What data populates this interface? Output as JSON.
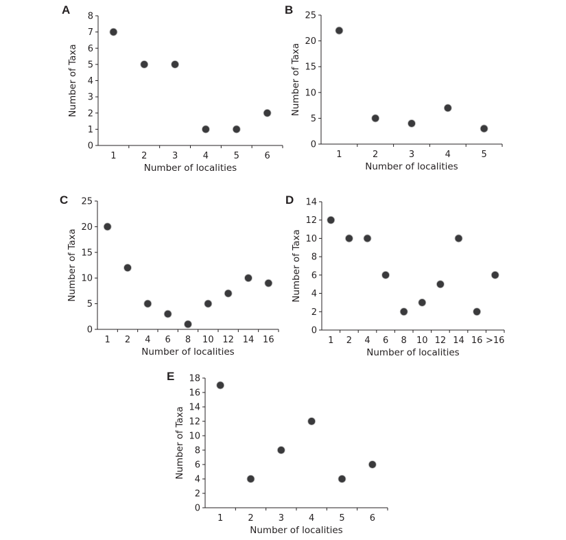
{
  "figure": {
    "marker_color": "#3a3a3c",
    "axis_color": "#231f20"
  },
  "chart_data": [
    {
      "panel": "A",
      "type": "scatter",
      "title": "",
      "xlabel": "Number of localities",
      "ylabel": "Number of Taxa",
      "categories": [
        "1",
        "2",
        "3",
        "4",
        "5",
        "6"
      ],
      "values": [
        7,
        5,
        5,
        1,
        1,
        2
      ],
      "ylim": [
        0,
        8
      ],
      "yticks": [
        "0",
        "1",
        "2",
        "3",
        "4",
        "5",
        "6",
        "7",
        "8"
      ],
      "grid": false
    },
    {
      "panel": "B",
      "type": "scatter",
      "title": "",
      "xlabel": "Number of localities",
      "ylabel": "Number of Taxa",
      "categories": [
        "1",
        "2",
        "3",
        "4",
        "5"
      ],
      "values": [
        22,
        5,
        4,
        7,
        3
      ],
      "ylim": [
        0,
        25
      ],
      "yticks": [
        "0",
        "5",
        "10",
        "15",
        "20",
        "25"
      ],
      "grid": false
    },
    {
      "panel": "C",
      "type": "scatter",
      "title": "",
      "xlabel": "Number of localities",
      "ylabel": "Number of Taxa",
      "categories": [
        "1",
        "2",
        "4",
        "6",
        "8",
        "10",
        "12",
        "14",
        "16"
      ],
      "values": [
        20,
        12,
        5,
        3,
        1,
        5,
        7,
        10,
        9
      ],
      "ylim": [
        0,
        25
      ],
      "yticks": [
        "0",
        "5",
        "10",
        "15",
        "20",
        "25"
      ],
      "grid": false
    },
    {
      "panel": "D",
      "type": "scatter",
      "title": "",
      "xlabel": "Number of localities",
      "ylabel": "Number of Taxa",
      "categories": [
        "1",
        "2",
        "4",
        "6",
        "8",
        "10",
        "12",
        "14",
        "16",
        ">16"
      ],
      "values": [
        12,
        10,
        10,
        6,
        2,
        3,
        5,
        10,
        2,
        6
      ],
      "ylim": [
        0,
        14
      ],
      "yticks": [
        "0",
        "2",
        "4",
        "6",
        "8",
        "10",
        "12",
        "14"
      ],
      "grid": false
    },
    {
      "panel": "E",
      "type": "scatter",
      "title": "",
      "xlabel": "Number of localities",
      "ylabel": "Number of Taxa",
      "categories": [
        "1",
        "2",
        "3",
        "4",
        "5",
        "6"
      ],
      "values": [
        17,
        4,
        8,
        12,
        4,
        6
      ],
      "ylim": [
        0,
        18
      ],
      "yticks": [
        "0",
        "2",
        "4",
        "6",
        "8",
        "10",
        "12",
        "14",
        "16",
        "18"
      ],
      "grid": false
    }
  ]
}
